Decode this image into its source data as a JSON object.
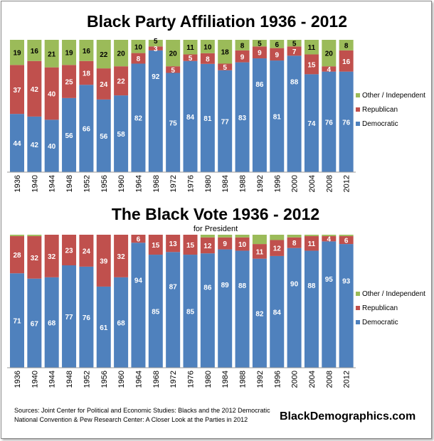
{
  "colors": {
    "democratic": "#4f81bd",
    "republican": "#c0504d",
    "other": "#9bbb59"
  },
  "chart_data": [
    {
      "type": "bar",
      "stacked": true,
      "title": "Black Party Affiliation 1936 - 2012",
      "categories": [
        "1936",
        "1940",
        "1944",
        "1948",
        "1952",
        "1956",
        "1960",
        "1964",
        "1968",
        "1972",
        "1976",
        "1980",
        "1984",
        "1988",
        "1992",
        "1996",
        "2000",
        "2004",
        "2008",
        "2012"
      ],
      "series": [
        {
          "name": "Democratic",
          "values": [
            44,
            42,
            40,
            56,
            66,
            56,
            58,
            82,
            92,
            75,
            84,
            81,
            77,
            83,
            86,
            81,
            88,
            74,
            76,
            76
          ]
        },
        {
          "name": "Republican",
          "values": [
            37,
            42,
            40,
            25,
            18,
            24,
            22,
            8,
            3,
            5,
            5,
            8,
            5,
            9,
            9,
            9,
            7,
            15,
            4,
            16
          ]
        },
        {
          "name": "Other / Independent",
          "values": [
            19,
            16,
            21,
            19,
            16,
            22,
            20,
            10,
            5,
            20,
            11,
            10,
            18,
            8,
            5,
            6,
            5,
            11,
            20,
            8
          ]
        }
      ],
      "legend": "right",
      "grid": false
    },
    {
      "type": "bar",
      "stacked": true,
      "title": "The Black Vote 1936 - 2012",
      "subtitle": "for President",
      "categories": [
        "1936",
        "1940",
        "1944",
        "1948",
        "1952",
        "1956",
        "1960",
        "1964",
        "1968",
        "1972",
        "1976",
        "1980",
        "1984",
        "1988",
        "1992",
        "1996",
        "2000",
        "2004",
        "2008",
        "2012"
      ],
      "series": [
        {
          "name": "Democratic",
          "values": [
            71,
            67,
            68,
            77,
            76,
            61,
            68,
            94,
            85,
            87,
            85,
            86,
            89,
            88,
            82,
            84,
            90,
            88,
            95,
            93
          ]
        },
        {
          "name": "Republican",
          "values": [
            28,
            32,
            32,
            23,
            24,
            39,
            32,
            6,
            15,
            13,
            15,
            12,
            9,
            10,
            11,
            12,
            8,
            11,
            4,
            6
          ]
        },
        {
          "name": "Other / Independent",
          "values": [
            1,
            1,
            0,
            0,
            0,
            0,
            0,
            0,
            0,
            0,
            0,
            2,
            2,
            2,
            7,
            4,
            2,
            1,
            1,
            1
          ],
          "labels_shown": false
        }
      ],
      "legend": "right",
      "grid": false
    }
  ],
  "footer": {
    "sources": "Sources: Joint Center for Political and Economic Studies: Blacks and the 2012 Democratic National Convention & Pew Research Center: A Closer Look at the Parties in 2012",
    "site": "BlackDemographics.com"
  }
}
